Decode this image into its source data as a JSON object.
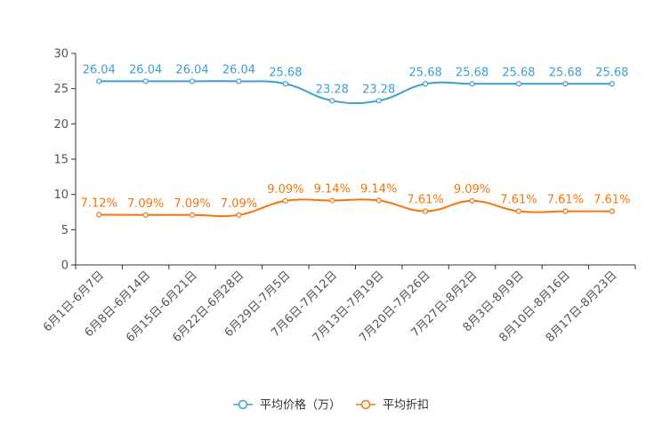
{
  "chart_data": {
    "type": "line",
    "categories": [
      "6月1日-6月7日",
      "6月8日-6月14日",
      "6月15日-6月21日",
      "6月22日-6月28日",
      "6月29日-7月5日",
      "7月6日-7月12日",
      "7月13日-7月19日",
      "7月20日-7月26日",
      "7月27日-8月2日",
      "8月3日-8月9日",
      "8月10日-8月16日",
      "8月17日-8月23日"
    ],
    "ylim": [
      0,
      30
    ],
    "yticks": [
      0,
      5,
      10,
      15,
      20,
      25,
      30
    ],
    "series": [
      {
        "name": "平均价格（万）",
        "color": "#3c9fd3",
        "values": [
          26.04,
          26.04,
          26.04,
          26.04,
          25.68,
          23.28,
          23.28,
          25.68,
          25.68,
          25.68,
          25.68,
          25.68
        ],
        "labels": [
          "26.04",
          "26.04",
          "26.04",
          "26.04",
          "25.68",
          "23.28",
          "23.28",
          "25.68",
          "25.68",
          "25.68",
          "25.68",
          "25.68"
        ]
      },
      {
        "name": "平均折扣",
        "color": "#f7750a",
        "values": [
          7.12,
          7.09,
          7.09,
          7.09,
          9.09,
          9.14,
          9.14,
          7.61,
          9.09,
          7.61,
          7.61,
          7.61
        ],
        "labels": [
          "7.12%",
          "7.09%",
          "7.09%",
          "7.09%",
          "9.09%",
          "9.14%",
          "9.14%",
          "7.61%",
          "9.09%",
          "7.61%",
          "7.61%",
          "7.61%"
        ]
      }
    ],
    "legend_position": "bottom-center",
    "grid": false
  }
}
